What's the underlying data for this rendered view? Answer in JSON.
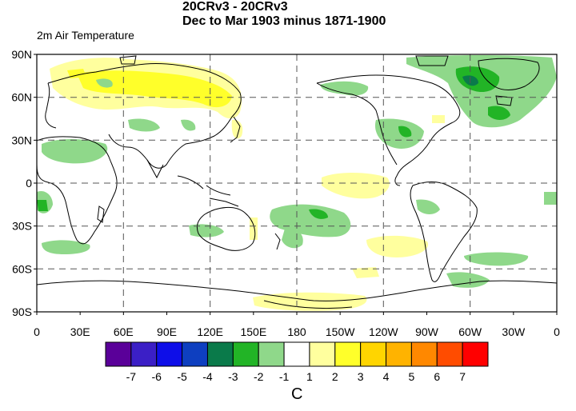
{
  "title": {
    "line1": "20CRv3 - 20CRv3",
    "line2": "Dec to Mar 1903 minus 1871-1900"
  },
  "variable": "2m Air Temperature",
  "lat_ticks": [
    "90N",
    "60N",
    "30N",
    "0",
    "30S",
    "60S",
    "90S"
  ],
  "lon_ticks": [
    "0",
    "30E",
    "60E",
    "90E",
    "120E",
    "150E",
    "180",
    "150W",
    "120W",
    "90W",
    "60W",
    "30W",
    "0"
  ],
  "colorbar": {
    "colors": [
      "#5a0099",
      "#3b1fc6",
      "#0e0ee8",
      "#0e3fc0",
      "#0a7a4a",
      "#22b426",
      "#8fd88a",
      "#ffffff",
      "#ffff9e",
      "#ffff2a",
      "#ffd500",
      "#ffb300",
      "#ff8800",
      "#ff4c00",
      "#ff0000"
    ],
    "labels": [
      "-7",
      "-6",
      "-5",
      "-4",
      "-3",
      "-2",
      "-1",
      "1",
      "2",
      "3",
      "4",
      "5",
      "6",
      "7"
    ],
    "unit": "C"
  }
}
